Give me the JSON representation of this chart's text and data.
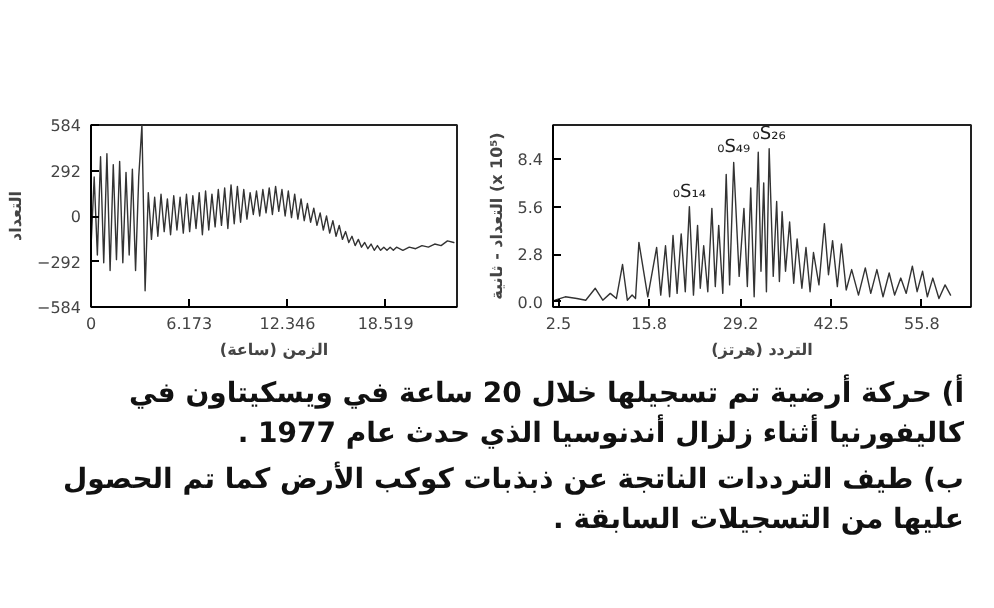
{
  "chart_data": [
    {
      "type": "line",
      "xlabel": "الزمن (ساعة)",
      "ylabel": "التعداد",
      "xlim": [
        0,
        23
      ],
      "ylim": [
        -584,
        584
      ],
      "xticks": [
        0,
        6.173,
        12.346,
        18.519
      ],
      "yticks": [
        -584,
        -292,
        0,
        292,
        584
      ],
      "grid": false,
      "marker": "none",
      "line_style": "solid",
      "x": [
        0,
        0.2,
        0.4,
        0.6,
        0.8,
        1.0,
        1.2,
        1.4,
        1.6,
        1.8,
        2.0,
        2.2,
        2.4,
        2.6,
        2.8,
        3.0,
        3.2,
        3.4,
        3.6,
        3.8,
        4.0,
        4.2,
        4.4,
        4.6,
        4.8,
        5.0,
        5.2,
        5.4,
        5.6,
        5.8,
        6.0,
        6.2,
        6.4,
        6.6,
        6.8,
        7.0,
        7.2,
        7.4,
        7.6,
        7.8,
        8.0,
        8.2,
        8.4,
        8.6,
        8.8,
        9.0,
        9.2,
        9.4,
        9.6,
        9.8,
        10.0,
        10.2,
        10.4,
        10.6,
        10.8,
        11.0,
        11.2,
        11.4,
        11.6,
        11.8,
        12.0,
        12.2,
        12.4,
        12.6,
        12.8,
        13.0,
        13.2,
        13.4,
        13.6,
        13.8,
        14.0,
        14.2,
        14.4,
        14.6,
        14.8,
        15.0,
        15.2,
        15.4,
        15.6,
        15.8,
        16.0,
        16.2,
        16.4,
        16.6,
        16.8,
        17.0,
        17.2,
        17.4,
        17.6,
        17.8,
        18.0,
        18.2,
        18.4,
        18.6,
        18.8,
        19.0,
        19.2,
        19.6,
        20.0,
        20.4,
        20.8,
        21.2,
        21.6,
        22.0,
        22.4,
        22.8
      ],
      "series": [
        {
          "color": "#333333",
          "values": [
            -200,
            250,
            -250,
            380,
            -300,
            400,
            -350,
            330,
            -280,
            350,
            -300,
            280,
            -250,
            300,
            -350,
            250,
            584,
            -480,
            150,
            -150,
            120,
            -130,
            140,
            -100,
            110,
            -120,
            130,
            -90,
            120,
            -110,
            140,
            -100,
            130,
            -80,
            150,
            -120,
            160,
            -90,
            140,
            -70,
            170,
            -60,
            180,
            -80,
            200,
            -50,
            190,
            -40,
            170,
            -20,
            150,
            10,
            160,
            0,
            170,
            20,
            180,
            10,
            190,
            30,
            170,
            0,
            160,
            -10,
            140,
            -20,
            110,
            -30,
            80,
            -40,
            50,
            -60,
            20,
            -90,
            0,
            -110,
            -30,
            -130,
            -60,
            -150,
            -100,
            -170,
            -130,
            -190,
            -150,
            -200,
            -170,
            -210,
            -180,
            -220,
            -190,
            -220,
            -200,
            -220,
            -200,
            -220,
            -200,
            -220,
            -200,
            -210,
            -190,
            -200,
            -180,
            -190,
            -160,
            -170
          ]
        }
      ],
      "annotations": [
        "أ) حركة أرضية تم تسجيلها خلال 20 ساعة في ويسكيتاون في كاليفورنيا أثناء زلزال أندنوسيا الذي حدث عام 1977 ."
      ]
    },
    {
      "type": "line",
      "xlabel": "التردد (هرتز)",
      "ylabel": "التعداد - ثانية (x 10⁵)",
      "xlim": [
        1.7,
        63
      ],
      "ylim": [
        -0.3,
        10.4
      ],
      "xticks": [
        2.5,
        15.8,
        29.2,
        42.5,
        55.8
      ],
      "yticks": [
        {
          "value": 0,
          "label": "0.0"
        },
        2.8,
        5.6,
        8.4
      ],
      "grid": false,
      "marker": "none",
      "line_style": "solid",
      "x": [
        2.0,
        3.5,
        5.2,
        6.5,
        7.9,
        9.0,
        10.1,
        11.0,
        11.9,
        12.6,
        13.3,
        13.8,
        14.3,
        15.6,
        16.9,
        17.5,
        18.2,
        18.8,
        19.3,
        19.9,
        20.5,
        21.1,
        21.7,
        22.3,
        22.9,
        23.3,
        23.8,
        24.4,
        25.0,
        25.5,
        26.0,
        26.6,
        27.1,
        27.6,
        28.2,
        29.0,
        29.7,
        30.2,
        30.7,
        31.2,
        31.8,
        32.2,
        32.6,
        33.0,
        33.4,
        34.0,
        34.5,
        34.9,
        35.3,
        35.8,
        36.4,
        37.0,
        37.5,
        38.2,
        38.8,
        39.4,
        39.9,
        40.7,
        41.5,
        42.1,
        42.7,
        43.4,
        44.0,
        44.7,
        45.5,
        46.5,
        47.5,
        48.3,
        49.2,
        50.1,
        51.0,
        51.8,
        52.7,
        53.5,
        54.4,
        55.1,
        55.9,
        56.6,
        57.4,
        58.3,
        59.2,
        60.0
      ],
      "series": [
        {
          "color": "#333333",
          "values": [
            0.1,
            0.3,
            0.2,
            0.1,
            0.8,
            0.1,
            0.5,
            0.2,
            2.2,
            0.1,
            0.4,
            0.2,
            3.5,
            0.3,
            3.2,
            0.4,
            3.3,
            0.3,
            3.9,
            0.5,
            4.0,
            0.6,
            5.6,
            0.4,
            4.5,
            0.8,
            3.3,
            0.6,
            5.5,
            0.9,
            4.5,
            0.5,
            7.5,
            1.0,
            8.2,
            1.5,
            5.5,
            0.9,
            6.7,
            0.3,
            8.8,
            1.8,
            7.0,
            0.6,
            9.0,
            1.5,
            5.9,
            1.2,
            5.3,
            1.8,
            4.7,
            1.1,
            3.7,
            0.8,
            3.2,
            0.6,
            2.9,
            1.0,
            4.6,
            1.6,
            3.6,
            0.9,
            3.4,
            0.7,
            1.9,
            0.4,
            2.0,
            0.5,
            1.9,
            0.3,
            1.7,
            0.4,
            1.4,
            0.5,
            2.1,
            0.6,
            1.8,
            0.3,
            1.4,
            0.2,
            1.0,
            0.4
          ]
        }
      ],
      "annotations": [
        {
          "text": "₀S₁₄",
          "x": 21.7,
          "y": 5.6
        },
        {
          "text": "₀S₄₉",
          "x": 28.2,
          "y": 8.2
        },
        {
          "text": "₀S₂₆",
          "x": 33.4,
          "y": 9.0
        },
        "ب) طيف الترددات الناتجة عن ذبذبات كوكب الأرض كما تم الحصول عليها من التسجيلات السابقة ."
      ]
    }
  ]
}
